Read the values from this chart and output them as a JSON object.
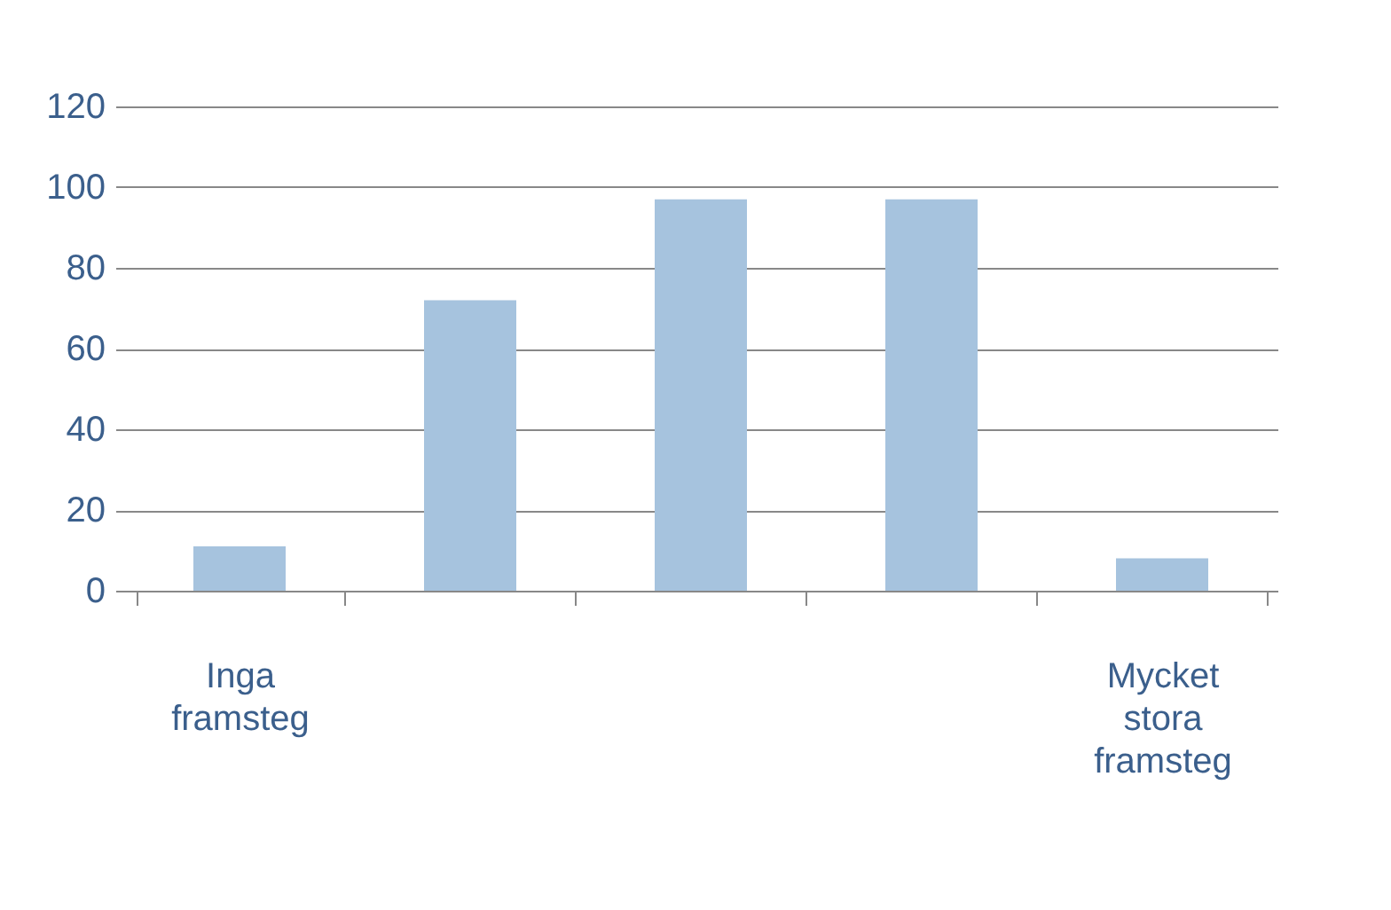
{
  "chart_data": {
    "type": "bar",
    "categories": [
      "Inga framsteg",
      null,
      null,
      null,
      "Mycket stora framsteg"
    ],
    "values": [
      11,
      72,
      97,
      97,
      8
    ],
    "color": "#a6c3de",
    "ylim": [
      0,
      120
    ],
    "yticks": [
      0,
      20,
      40,
      60,
      80,
      100,
      120
    ],
    "grid": "y"
  }
}
